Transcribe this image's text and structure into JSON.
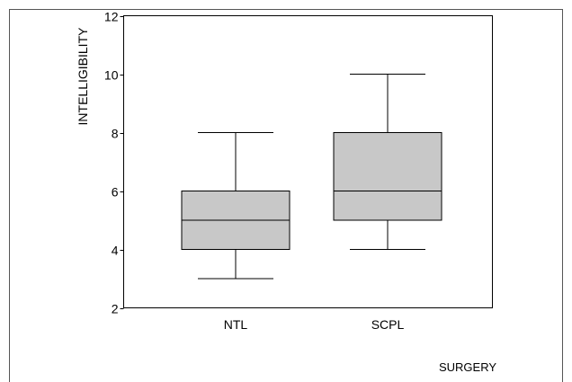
{
  "chart_data": {
    "type": "box",
    "xlabel": "SURGERY",
    "ylabel": "INTELLIGIBILITY",
    "ylim": [
      2,
      12
    ],
    "yticks": [
      2,
      4,
      6,
      8,
      10,
      12
    ],
    "grid": false,
    "categories": [
      "NTL",
      "SCPL"
    ],
    "boxes": [
      {
        "label": "NTL",
        "min": 3,
        "q1": 4,
        "median": 5,
        "q3": 6,
        "max": 8
      },
      {
        "label": "SCPL",
        "min": 4,
        "q1": 5,
        "median": 6,
        "q3": 8,
        "max": 10
      }
    ],
    "colors": {
      "box_fill": "#c8c8c8",
      "stroke": "#000000"
    }
  }
}
